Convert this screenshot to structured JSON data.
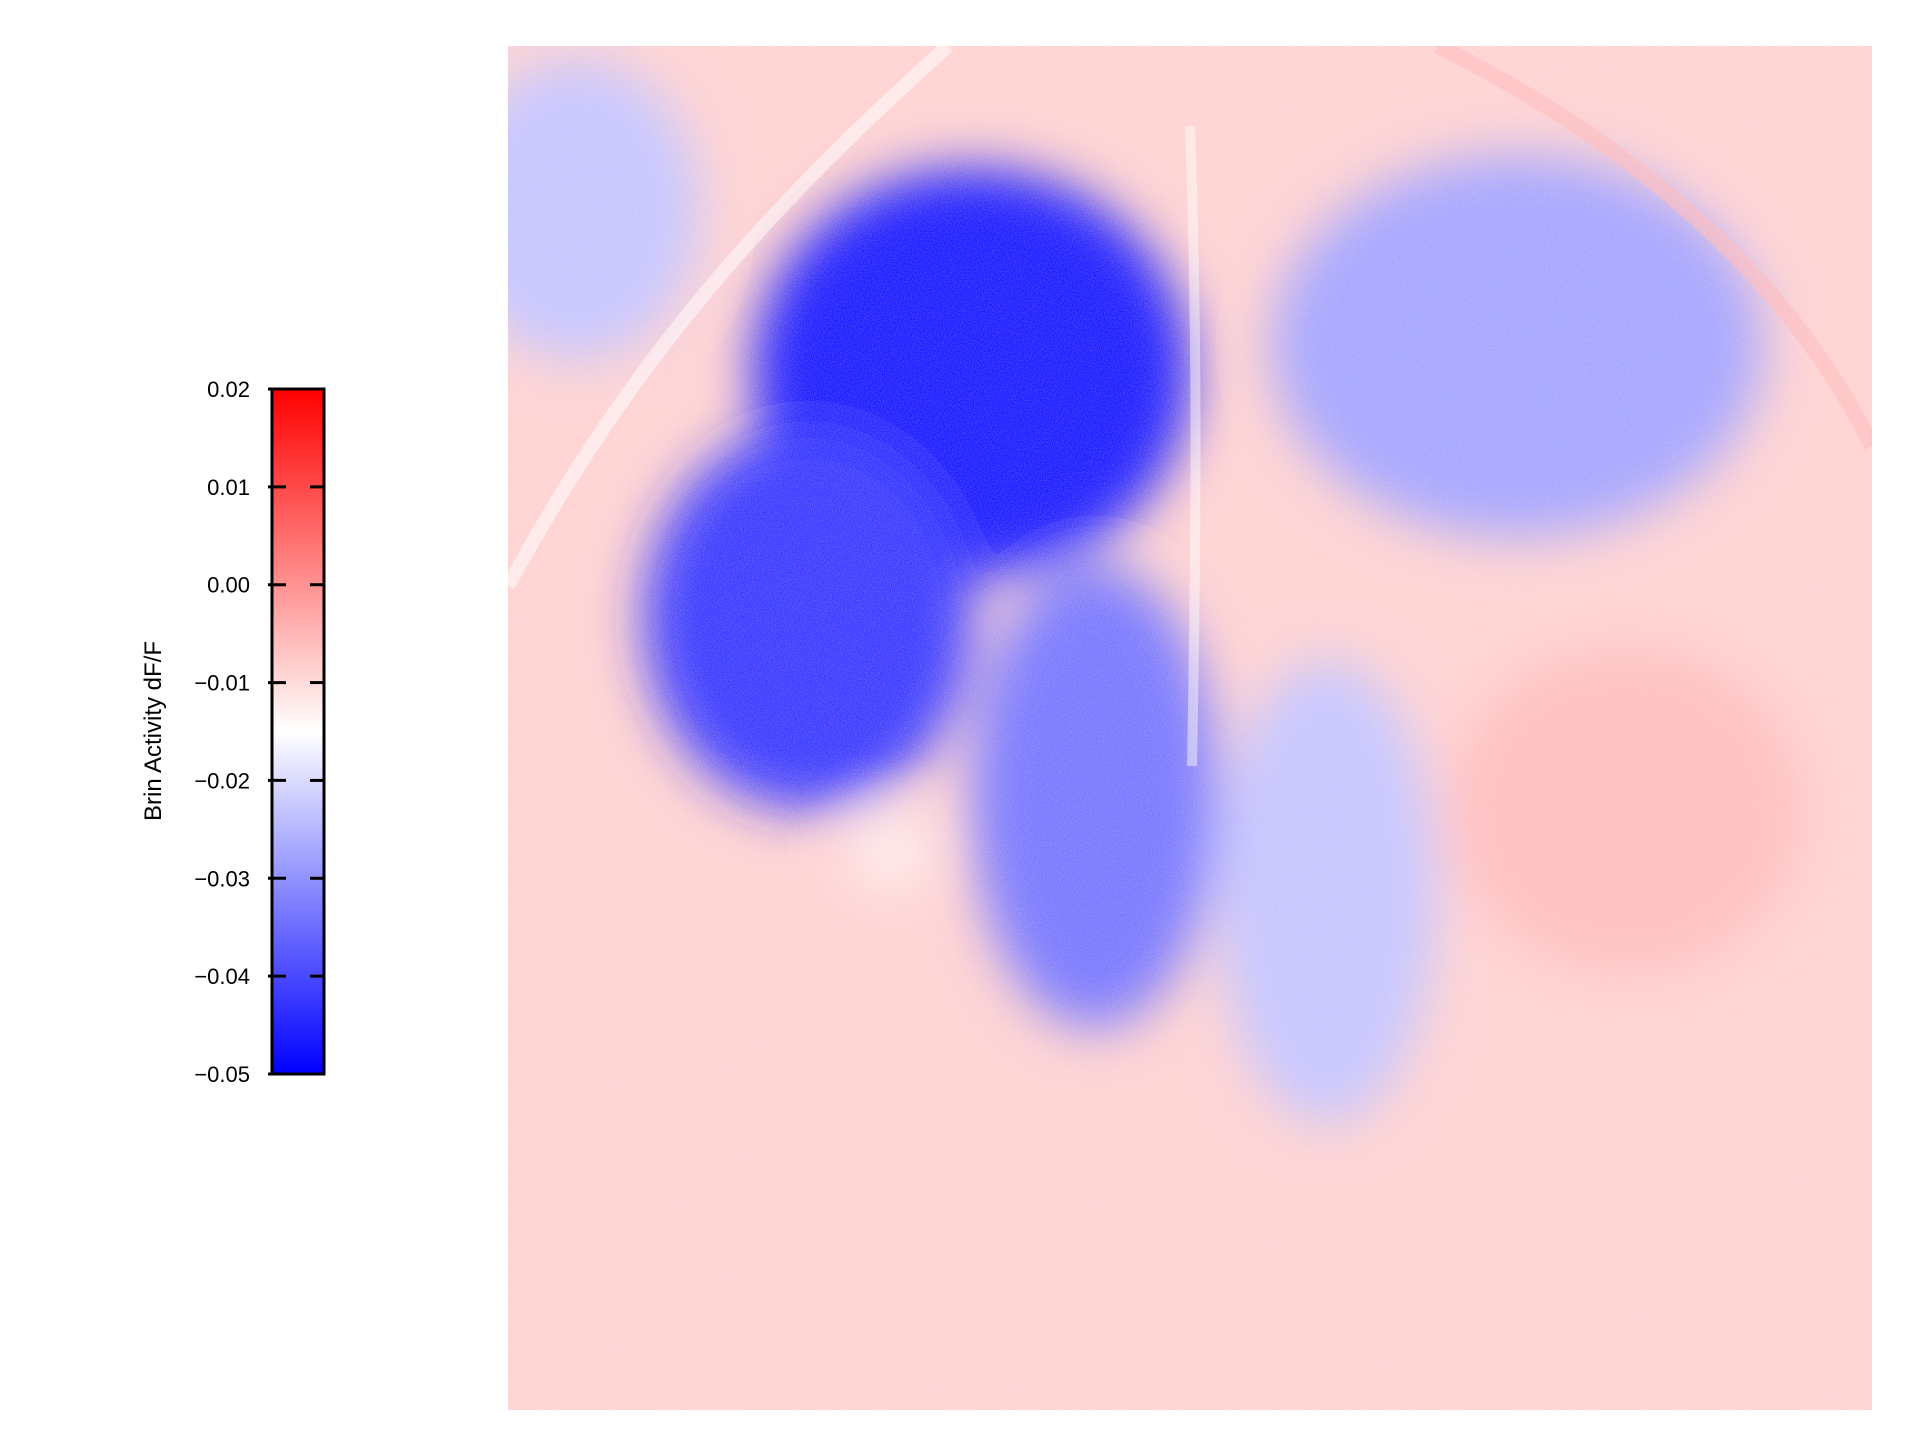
{
  "chart_data": {
    "type": "heatmap",
    "title": "",
    "colorbar": {
      "label": "Brin Activity dF/F",
      "range": [
        -0.05,
        0.02
      ],
      "center": -0.015,
      "ticks": [
        0.02,
        0.01,
        0.0,
        -0.01,
        -0.02,
        -0.03,
        -0.04,
        -0.05
      ],
      "tick_labels": [
        "0.02",
        "0.01",
        "0.00",
        "−0.01",
        "−0.02",
        "−0.03",
        "−0.04",
        "−0.05"
      ],
      "colormap": "bwr",
      "colors": {
        "low": "#0000ff",
        "mid": "#ffffff",
        "high": "#ff0000"
      }
    },
    "axes_visible": false,
    "grid": false,
    "regions": [
      {
        "value": -0.052,
        "cx": 0.34,
        "cy": 0.24,
        "sx": 0.16,
        "sy": 0.15
      },
      {
        "value": -0.045,
        "cx": 0.22,
        "cy": 0.42,
        "sx": 0.12,
        "sy": 0.14
      },
      {
        "value": -0.036,
        "cx": 0.43,
        "cy": 0.55,
        "sx": 0.09,
        "sy": 0.17
      },
      {
        "value": -0.029,
        "cx": 0.74,
        "cy": 0.22,
        "sx": 0.18,
        "sy": 0.14
      },
      {
        "value": -0.024,
        "cx": 0.6,
        "cy": 0.62,
        "sx": 0.08,
        "sy": 0.17
      },
      {
        "value": -0.024,
        "cx": 0.05,
        "cy": 0.12,
        "sx": 0.09,
        "sy": 0.11
      },
      {
        "value": -0.008,
        "cx": 0.95,
        "cy": 0.06,
        "sx": 0.06,
        "sy": 0.06
      },
      {
        "value": -0.005,
        "cx": 0.82,
        "cy": 0.56,
        "sx": 0.13,
        "sy": 0.12
      },
      {
        "value": -0.012,
        "cx": 0.28,
        "cy": 0.59,
        "sx": 0.03,
        "sy": 0.03
      }
    ],
    "background_value": -0.008
  }
}
